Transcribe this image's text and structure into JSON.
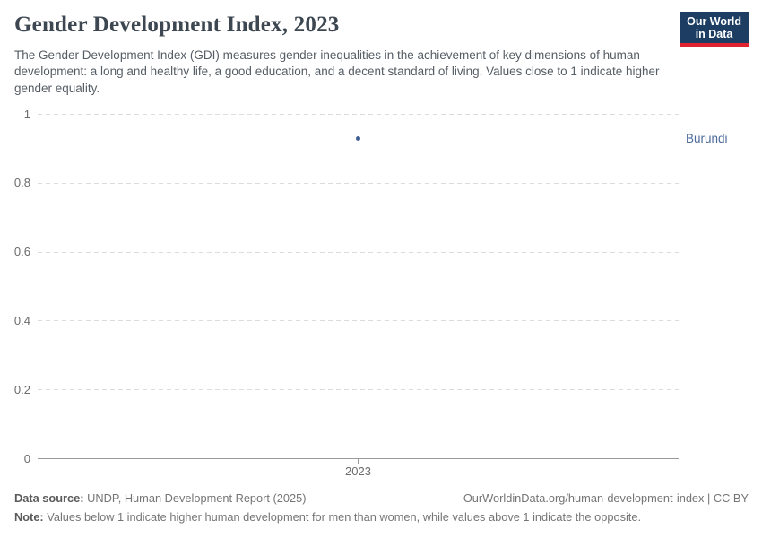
{
  "header": {
    "title": "Gender Development Index, 2023",
    "subtitle": "The Gender Development Index (GDI) measures gender inequalities in the achievement of key dimensions of human development: a long and healthy life, a good education, and a decent standard of living. Values close to 1 indicate higher gender equality.",
    "logo": {
      "line1": "Our World",
      "line2": "in Data"
    }
  },
  "chart_data": {
    "type": "scatter",
    "x": [
      2023
    ],
    "series": [
      {
        "name": "Burundi",
        "values": [
          0.93
        ]
      }
    ],
    "title": "Gender Development Index, 2023",
    "xlabel": "",
    "ylabel": "",
    "ylim": [
      0,
      1
    ],
    "yticks": [
      0,
      0.2,
      0.4,
      0.6,
      0.8,
      1
    ],
    "xticks": [
      "2023"
    ],
    "grid": "horizontal-dashed",
    "legend_position": "right-entity-label",
    "entity_label": "Burundi"
  },
  "footer": {
    "data_source_label": "Data source:",
    "data_source": "UNDP, Human Development Report (2025)",
    "url_credit": "OurWorldinData.org/human-development-index | CC BY",
    "note_label": "Note:",
    "note": "Values below 1 indicate higher human development for men than women, while values above 1 indicate the opposite."
  },
  "colors": {
    "accent": "#4c6a9c",
    "point": "#3f5f92",
    "logo_navy": "#1d3d63",
    "logo_red": "#e0232e"
  }
}
